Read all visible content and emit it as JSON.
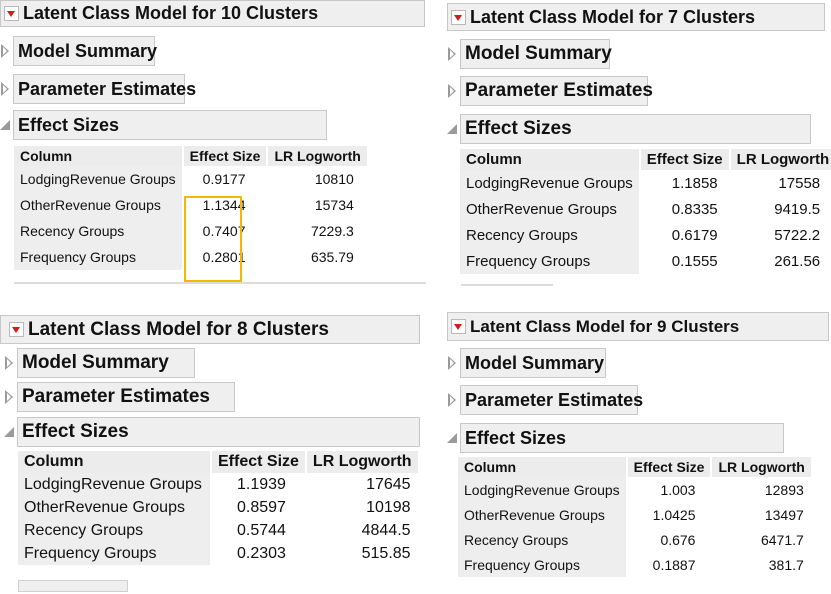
{
  "panels": [
    {
      "title": "Latent Class Model for 10 Clusters",
      "outlines": [
        "Model Summary",
        "Parameter Estimates",
        "Effect Sizes"
      ],
      "columns": [
        "Column",
        "Effect Size",
        "LR Logworth"
      ],
      "rows": [
        {
          "name": "LodgingRevenue Groups",
          "effect": "0.9177",
          "logworth": "10810"
        },
        {
          "name": "OtherRevenue Groups",
          "effect": "1.1344",
          "logworth": "15734"
        },
        {
          "name": "Recency Groups",
          "effect": "0.7407",
          "logworth": "7229.3"
        },
        {
          "name": "Frequency Groups",
          "effect": "0.2801",
          "logworth": "635.79"
        }
      ],
      "highlight_color": "#f5b800"
    },
    {
      "title": "Latent Class Model for 7 Clusters",
      "outlines": [
        "Model Summary",
        "Parameter Estimates",
        "Effect Sizes"
      ],
      "columns": [
        "Column",
        "Effect Size",
        "LR Logworth"
      ],
      "rows": [
        {
          "name": "LodgingRevenue Groups",
          "effect": "1.1858",
          "logworth": "17558"
        },
        {
          "name": "OtherRevenue Groups",
          "effect": "0.8335",
          "logworth": "9419.5"
        },
        {
          "name": "Recency Groups",
          "effect": "0.6179",
          "logworth": "5722.2"
        },
        {
          "name": "Frequency Groups",
          "effect": "0.1555",
          "logworth": "261.56"
        }
      ]
    },
    {
      "title": "Latent Class Model for 8 Clusters",
      "outlines": [
        "Model Summary",
        "Parameter Estimates",
        "Effect Sizes"
      ],
      "columns": [
        "Column",
        "Effect Size",
        "LR Logworth"
      ],
      "rows": [
        {
          "name": "LodgingRevenue Groups",
          "effect": "1.1939",
          "logworth": "17645"
        },
        {
          "name": "OtherRevenue Groups",
          "effect": "0.8597",
          "logworth": "10198"
        },
        {
          "name": "Recency Groups",
          "effect": "0.5744",
          "logworth": "4844.5"
        },
        {
          "name": "Frequency Groups",
          "effect": "0.2303",
          "logworth": "515.85"
        }
      ]
    },
    {
      "title": "Latent Class Model for 9 Clusters",
      "outlines": [
        "Model Summary",
        "Parameter Estimates",
        "Effect Sizes"
      ],
      "columns": [
        "Column",
        "Effect Size",
        "LR Logworth"
      ],
      "rows": [
        {
          "name": "LodgingRevenue Groups",
          "effect": "1.003",
          "logworth": "12893"
        },
        {
          "name": "OtherRevenue Groups",
          "effect": "1.0425",
          "logworth": "13497"
        },
        {
          "name": "Recency Groups",
          "effect": "0.676",
          "logworth": "6471.7"
        },
        {
          "name": "Frequency Groups",
          "effect": "0.1887",
          "logworth": "381.7"
        }
      ]
    }
  ]
}
